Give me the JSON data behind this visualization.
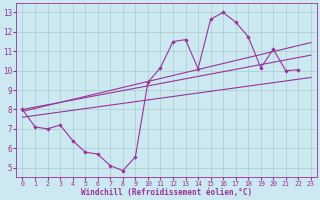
{
  "xlabel": "Windchill (Refroidissement éolien,°C)",
  "bg_color": "#cce8f0",
  "grid_color": "#aacccc",
  "line_color": "#993399",
  "xlim": [
    -0.5,
    23.5
  ],
  "ylim": [
    4.5,
    13.5
  ],
  "xticks": [
    0,
    1,
    2,
    3,
    4,
    5,
    6,
    7,
    8,
    9,
    10,
    11,
    12,
    13,
    14,
    15,
    16,
    17,
    18,
    19,
    20,
    21,
    22,
    23
  ],
  "yticks": [
    5,
    6,
    7,
    8,
    9,
    10,
    11,
    12,
    13
  ],
  "line1_x": [
    0,
    1,
    2,
    3,
    4,
    5,
    6,
    7,
    8,
    9,
    10,
    11,
    12,
    13,
    14,
    15,
    16,
    17,
    18,
    19,
    20,
    21,
    22
  ],
  "line1_y": [
    8.0,
    7.1,
    7.0,
    7.2,
    6.4,
    5.8,
    5.7,
    5.1,
    4.85,
    5.55,
    9.4,
    10.15,
    11.5,
    11.6,
    10.1,
    12.65,
    13.0,
    12.5,
    11.75,
    10.15,
    11.1,
    10.0,
    10.05
  ],
  "line2_x": [
    0,
    23
  ],
  "line2_y": [
    7.6,
    9.65
  ],
  "line3_x": [
    0,
    23
  ],
  "line3_y": [
    8.0,
    10.8
  ],
  "line4_x": [
    0,
    23
  ],
  "line4_y": [
    7.9,
    11.45
  ]
}
